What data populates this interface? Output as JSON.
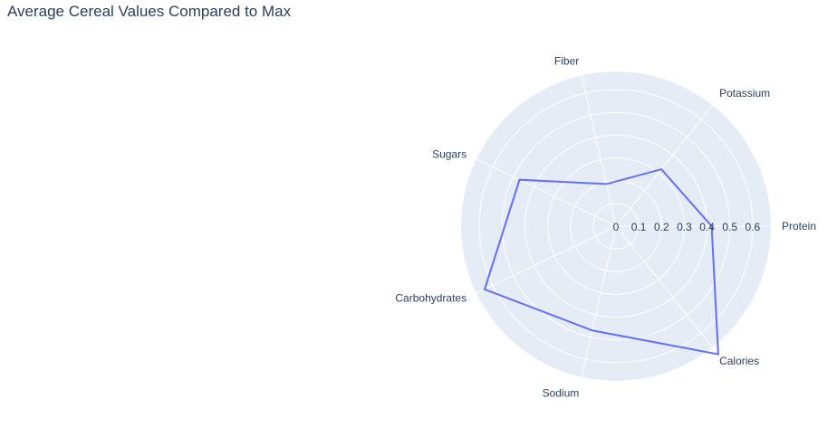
{
  "chart_data": {
    "type": "radar",
    "title": "Average Cereal Values Compared to Max",
    "theta": [
      "Protein",
      "Potassium",
      "Fiber",
      "Sugars",
      "Carbohydrates",
      "Sodium",
      "Calories"
    ],
    "r": [
      0.42,
      0.32,
      0.19,
      0.47,
      0.64,
      0.47,
      0.72
    ],
    "radial_axis": {
      "range": [
        0,
        0.68
      ],
      "ticks": [
        0,
        0.1,
        0.2,
        0.3,
        0.4,
        0.5,
        0.6
      ],
      "tick_labels": [
        "0",
        "0.1",
        "0.2",
        "0.3",
        "0.4",
        "0.5",
        "0.6"
      ]
    },
    "line_color": "#636efa",
    "background_color": "#e5ecf6",
    "grid_color": "#ffffff",
    "legend": "none"
  }
}
